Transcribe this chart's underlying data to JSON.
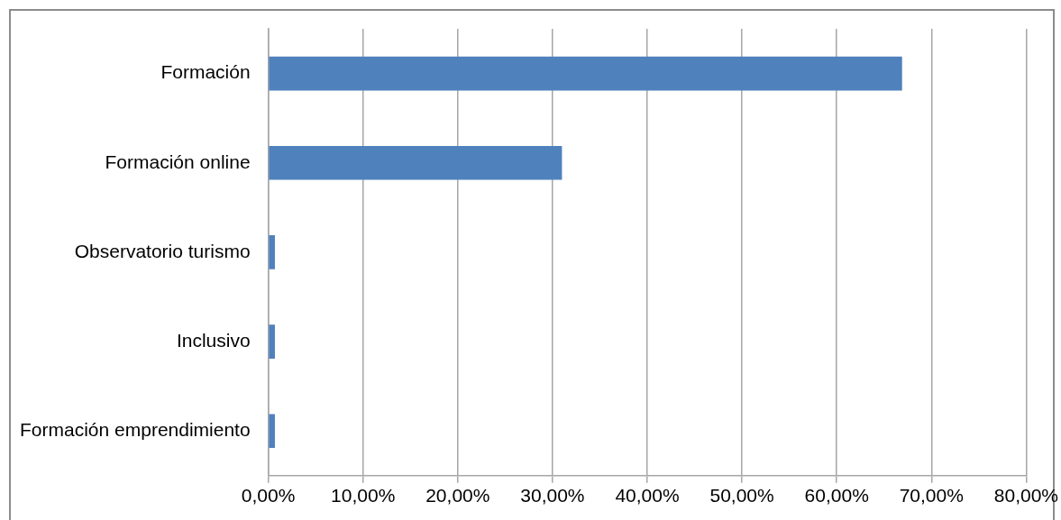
{
  "chart_data": {
    "type": "bar",
    "orientation": "horizontal",
    "categories": [
      "Formación",
      "Formación online",
      "Observatorio turismo",
      "Inclusivo",
      "Formación emprendimiento"
    ],
    "values": [
      66.9,
      31.0,
      0.7,
      0.7,
      0.7
    ],
    "color": "#4f81bd",
    "xlim": [
      0,
      80
    ],
    "xticks": [
      {
        "value": 0,
        "label": "0,00%"
      },
      {
        "value": 10,
        "label": "10,00%"
      },
      {
        "value": 20,
        "label": "20,00%"
      },
      {
        "value": 30,
        "label": "30,00%"
      },
      {
        "value": 40,
        "label": "40,00%"
      },
      {
        "value": 50,
        "label": "50,00%"
      },
      {
        "value": 60,
        "label": "60,00%"
      },
      {
        "value": 70,
        "label": "70,00%"
      },
      {
        "value": 80,
        "label": "80,00%"
      }
    ],
    "grid": "x",
    "legend": false
  }
}
